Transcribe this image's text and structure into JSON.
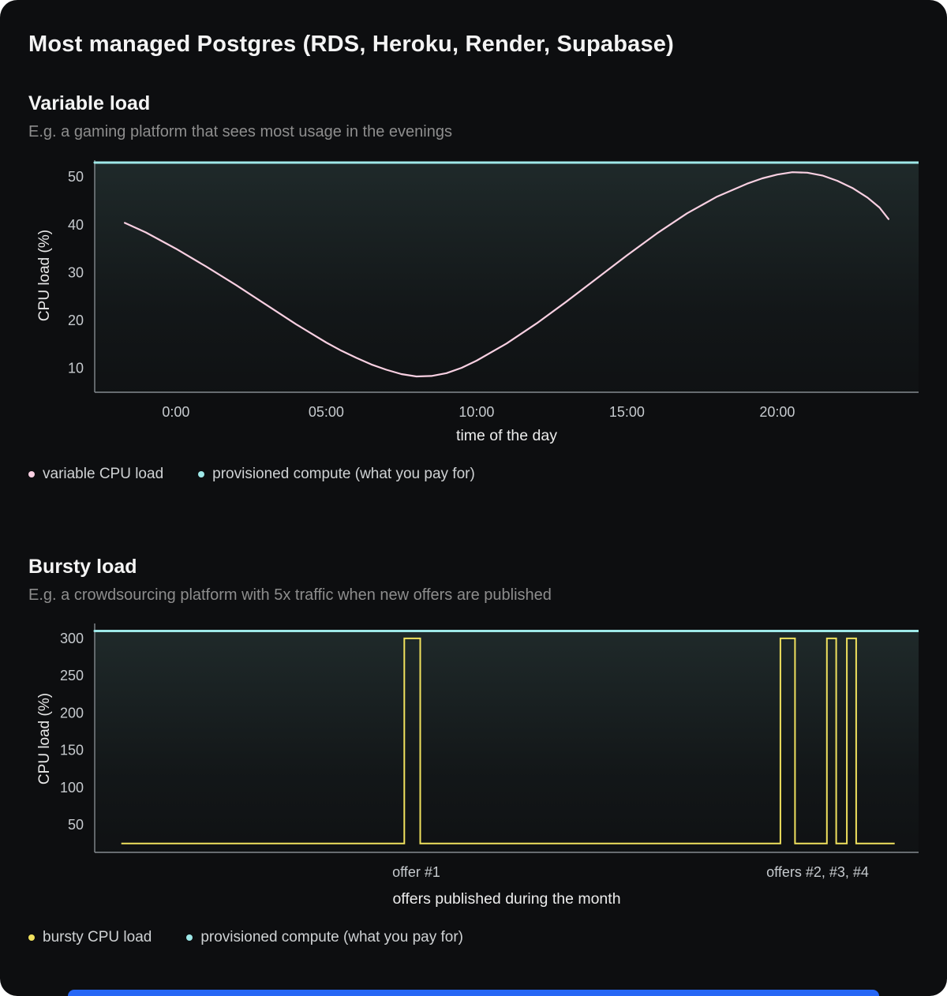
{
  "page": {
    "title": "Most managed Postgres (RDS, Heroku, Render, Supabase)"
  },
  "colors": {
    "background": "#0d0e10",
    "pink": "#f9d0e2",
    "cyan": "#9ee8e8",
    "yellow": "#f0e15e",
    "axis": "#848a8f",
    "banner_blue": "#2767f5"
  },
  "bottom_banner": {
    "color": "#2767f5"
  },
  "chart_data": [
    {
      "type": "line",
      "title": "Variable load",
      "subtitle": "E.g. a gaming platform that sees most usage in the evenings",
      "xlabel": "time of the day",
      "ylabel": "CPU load (%)",
      "xlim": [
        -2.7,
        24.7
      ],
      "ylim": [
        5,
        53.5
      ],
      "grid": false,
      "legend_position": "bottom",
      "axis_color": "#848a8f",
      "fill_tint": "#7db9b2",
      "margins": {
        "l": 84,
        "r": 0,
        "t": 4,
        "b": 42
      },
      "yticks": [
        10,
        20,
        30,
        40,
        50
      ],
      "xticks": [
        {
          "v": 0,
          "label": "0:00"
        },
        {
          "v": 5,
          "label": "05:00"
        },
        {
          "v": 10,
          "label": "10:00"
        },
        {
          "v": 15,
          "label": "15:00"
        },
        {
          "v": 20,
          "label": "20:00"
        }
      ],
      "series": [
        {
          "name": "variable CPU load",
          "type": "line",
          "color": "#f9d0e2",
          "points": [
            [
              -1.7,
              40.4
            ],
            [
              -1,
              38.4
            ],
            [
              0,
              35.0
            ],
            [
              1,
              31.3
            ],
            [
              2,
              27.4
            ],
            [
              3,
              23.3
            ],
            [
              4,
              19.2
            ],
            [
              5,
              15.4
            ],
            [
              5.5,
              13.7
            ],
            [
              6,
              12.2
            ],
            [
              6.5,
              10.8
            ],
            [
              7,
              9.7
            ],
            [
              7.5,
              8.8
            ],
            [
              8,
              8.3
            ],
            [
              8.5,
              8.4
            ],
            [
              9,
              9.0
            ],
            [
              9.5,
              10.1
            ],
            [
              10,
              11.6
            ],
            [
              11,
              15.2
            ],
            [
              12,
              19.4
            ],
            [
              13,
              24.0
            ],
            [
              14,
              28.8
            ],
            [
              15,
              33.6
            ],
            [
              16,
              38.2
            ],
            [
              17,
              42.4
            ],
            [
              18,
              45.9
            ],
            [
              19,
              48.6
            ],
            [
              19.5,
              49.7
            ],
            [
              20,
              50.5
            ],
            [
              20.5,
              51.0
            ],
            [
              21,
              50.9
            ],
            [
              21.5,
              50.3
            ],
            [
              22,
              49.2
            ],
            [
              22.5,
              47.7
            ],
            [
              23,
              45.7
            ],
            [
              23.4,
              43.6
            ],
            [
              23.7,
              41.2
            ]
          ]
        },
        {
          "name": "provisioned compute (what you pay for)",
          "type": "hline",
          "color": "#9ee8e8",
          "value": 53,
          "span": [
            -2.7,
            24.7
          ]
        }
      ]
    },
    {
      "type": "line",
      "title": "Bursty load",
      "subtitle": "E.g. a crowdsourcing platform with 5x traffic when new offers are published",
      "xlabel": "offers published during the month",
      "ylabel": "CPU load (%)",
      "xlim": [
        0,
        31
      ],
      "ylim": [
        13,
        320
      ],
      "grid": false,
      "legend_position": "bottom",
      "axis_color": "#848a8f",
      "fill_tint": "#7db9b2",
      "margins": {
        "l": 84,
        "r": 0,
        "t": 4,
        "b": 46
      },
      "yticks": [
        50,
        100,
        150,
        200,
        250,
        300
      ],
      "xticks": [
        {
          "v": 12.1,
          "label": "offer #1"
        },
        {
          "v": 27.2,
          "label": "offers #2, #3, #4"
        }
      ],
      "series": [
        {
          "name": "bursty CPU load",
          "type": "steps",
          "color": "#f0e15e",
          "baseline": 25,
          "burst": 300,
          "start": 1.0,
          "end": 30.1,
          "bursts": [
            [
              11.65,
              12.25
            ],
            [
              25.8,
              26.35
            ],
            [
              27.55,
              27.9
            ],
            [
              28.3,
              28.65
            ]
          ]
        },
        {
          "name": "provisioned compute (what you pay for)",
          "type": "hline",
          "color": "#9ee8e8",
          "value": 310,
          "span": [
            0,
            31
          ]
        }
      ]
    }
  ]
}
